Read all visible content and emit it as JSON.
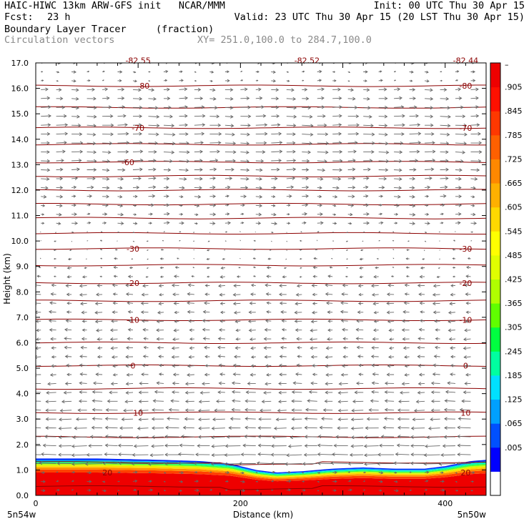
{
  "header": {
    "title_left": "HAIC-HIWC 13km ARW-GFS init   NCAR/MMM",
    "init": "Init: 00 UTC Thu 30 Apr 15",
    "fcst_label": "Fcst:",
    "fcst_value": "23 h",
    "valid": "Valid: 23 UTC Thu 30 Apr 15 (20 LST Thu 30 Apr 15)",
    "field_name": "Boundary Layer Tracer",
    "field_unit": "(fraction)",
    "overlay": "Circulation vectors",
    "xsec": "XY= 251.0,100.0 to 284.7,100.0"
  },
  "chart_data": {
    "type": "cross-section",
    "xlabel": "Distance (km)",
    "ylabel": "Height (km)",
    "xlim": [
      0,
      440
    ],
    "ylim": [
      0,
      17
    ],
    "x_ticks": [
      0,
      200,
      400
    ],
    "y_ticks": [
      "0.0",
      "1.0",
      "2.0",
      "3.0",
      "4.0",
      "5.0",
      "6.0",
      "7.0",
      "8.0",
      "9.0",
      "10.0",
      "11.0",
      "12.0",
      "13.0",
      "14.0",
      "15.0",
      "16.0",
      "17.0"
    ],
    "x_endpoints": {
      "left": "5n54w",
      "right": "5n50w"
    },
    "colorbar": {
      "labels": [
        ".905",
        ".845",
        ".785",
        ".725",
        ".665",
        ".605",
        ".545",
        ".485",
        ".425",
        ".365",
        ".305",
        ".245",
        ".185",
        ".125",
        ".065",
        ".005"
      ],
      "top_label": "–",
      "colors": [
        "#ffffff",
        "#0000ff",
        "#0050ff",
        "#00a0ff",
        "#00e0ff",
        "#00ffa0",
        "#00ff40",
        "#60ff00",
        "#b0ff00",
        "#e0ff00",
        "#ffff00",
        "#ffd800",
        "#ffb000",
        "#ff8800",
        "#ff6000",
        "#ff3800",
        "#ff1000",
        "#ee0000"
      ]
    },
    "isotherm_heights_km": [
      0.35,
      1.3,
      2.3,
      3.25,
      4.2,
      5.1,
      6.0,
      6.9,
      7.65,
      8.35,
      9.05,
      9.7,
      10.3,
      10.9,
      11.45,
      12.0,
      12.55,
      13.1,
      13.8,
      14.45,
      15.25,
      16.1
    ],
    "isotherm_labels": [
      {
        "text": "20",
        "x": 70,
        "y": 0.9
      },
      {
        "text": "20",
        "x": 420,
        "y": 0.9
      },
      {
        "text": "10",
        "x": 100,
        "y": 3.25
      },
      {
        "text": "10",
        "x": 420,
        "y": 3.25
      },
      {
        "text": "0",
        "x": 95,
        "y": 5.1
      },
      {
        "text": "0",
        "x": 420,
        "y": 5.1
      },
      {
        "text": "-10",
        "x": 95,
        "y": 6.9
      },
      {
        "text": "-10",
        "x": 420,
        "y": 6.9
      },
      {
        "text": "-20",
        "x": 95,
        "y": 8.35
      },
      {
        "text": "-20",
        "x": 420,
        "y": 8.35
      },
      {
        "text": "-30",
        "x": 95,
        "y": 9.7
      },
      {
        "text": "-30",
        "x": 420,
        "y": 9.7
      },
      {
        "text": "-60",
        "x": 90,
        "y": 13.1
      },
      {
        "text": "-70",
        "x": 100,
        "y": 14.45
      },
      {
        "text": "-70",
        "x": 420,
        "y": 14.45
      },
      {
        "text": "-80",
        "x": 105,
        "y": 16.1
      },
      {
        "text": "-80",
        "x": 420,
        "y": 16.1
      },
      {
        "text": "-82.55",
        "x": 100,
        "y": 17.1
      },
      {
        "text": "-82.52",
        "x": 265,
        "y": 17.1
      },
      {
        "text": "-82.44",
        "x": 420,
        "y": 17.1
      }
    ],
    "tracer_top_km": [
      [
        0,
        1.45
      ],
      [
        60,
        1.45
      ],
      [
        120,
        1.4
      ],
      [
        160,
        1.35
      ],
      [
        190,
        1.25
      ],
      [
        215,
        1.0
      ],
      [
        235,
        0.9
      ],
      [
        260,
        0.95
      ],
      [
        290,
        1.05
      ],
      [
        320,
        1.1
      ],
      [
        350,
        1.05
      ],
      [
        380,
        1.05
      ],
      [
        400,
        1.15
      ],
      [
        425,
        1.35
      ],
      [
        440,
        1.4
      ]
    ],
    "wind_vectors": "easterly at most levels below 11 km, westerly 11-16 km"
  }
}
